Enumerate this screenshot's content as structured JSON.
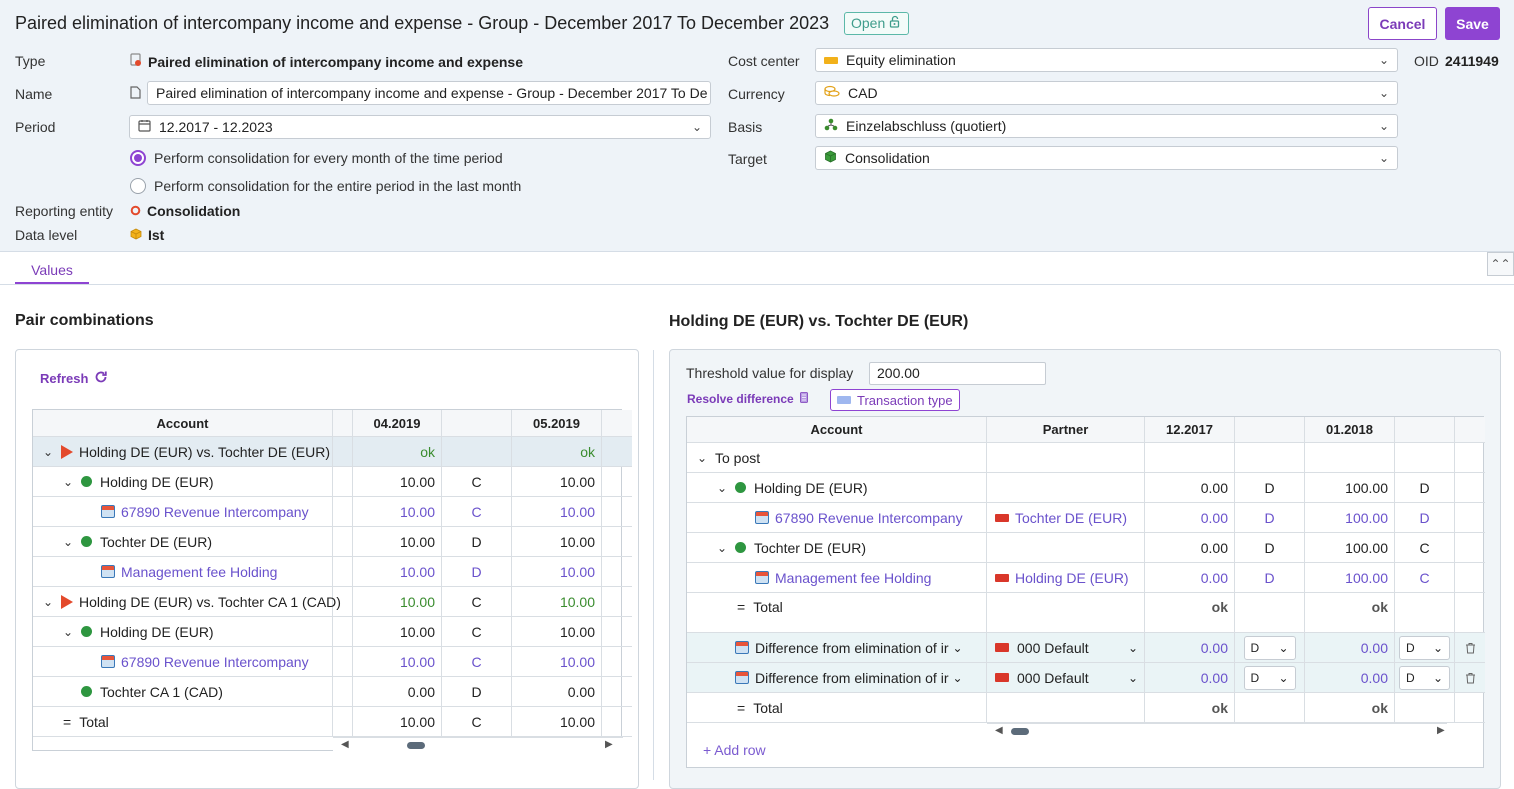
{
  "header": {
    "title": "Paired elimination of intercompany income and expense - Group - December 2017 To December 2023",
    "status": "Open",
    "cancel_label": "Cancel",
    "save_label": "Save",
    "oid_label": "OID",
    "oid_value": "2411949"
  },
  "form": {
    "type_label": "Type",
    "type_value": "Paired elimination of intercompany income and expense",
    "name_label": "Name",
    "name_value": "Paired elimination of intercompany income and expense - Group - December 2017 To De",
    "period_label": "Period",
    "period_value": "12.2017 - 12.2023",
    "radio_monthly": "Perform consolidation for every month of the time period",
    "radio_entire": "Perform consolidation for the entire period in the last month",
    "reporting_entity_label": "Reporting entity",
    "reporting_entity_value": "Consolidation",
    "data_level_label": "Data level",
    "data_level_value": "Ist",
    "cost_center_label": "Cost center",
    "cost_center_value": "Equity elimination",
    "currency_label": "Currency",
    "currency_value": "CAD",
    "basis_label": "Basis",
    "basis_value": "Einzelabschluss (quotiert)",
    "target_label": "Target",
    "target_value": "Consolidation"
  },
  "tabs": {
    "values": "Values"
  },
  "left": {
    "section_title": "Pair combinations",
    "refresh_label": "Refresh",
    "columns": [
      "Account",
      "04.2019",
      "",
      "05.2019"
    ],
    "rows": [
      {
        "label": "Holding DE (EUR) vs. Tochter DE (EUR)",
        "v1": "ok",
        "dc": "",
        "v2": "ok"
      },
      {
        "label": "Holding DE (EUR)",
        "v1": "10.00",
        "dc": "C",
        "v2": "10.00"
      },
      {
        "label": "67890 Revenue Intercompany",
        "v1": "10.00",
        "dc": "C",
        "v2": "10.00"
      },
      {
        "label": "Tochter DE (EUR)",
        "v1": "10.00",
        "dc": "D",
        "v2": "10.00"
      },
      {
        "label": "Management fee Holding",
        "v1": "10.00",
        "dc": "D",
        "v2": "10.00"
      },
      {
        "label": "Holding DE (EUR) vs. Tochter CA 1 (CAD)",
        "v1": "10.00",
        "dc": "C",
        "v2": "10.00"
      },
      {
        "label": "Holding DE (EUR)",
        "v1": "10.00",
        "dc": "C",
        "v2": "10.00"
      },
      {
        "label": "67890 Revenue Intercompany",
        "v1": "10.00",
        "dc": "C",
        "v2": "10.00"
      },
      {
        "label": "Tochter CA 1 (CAD)",
        "v1": "0.00",
        "dc": "D",
        "v2": "0.00"
      },
      {
        "label": "Total",
        "v1": "10.00",
        "dc": "C",
        "v2": "10.00"
      }
    ]
  },
  "right": {
    "section_title": "Holding DE (EUR) vs. Tochter DE (EUR)",
    "threshold_label": "Threshold value for display",
    "threshold_value": "200.00",
    "resolve_label": "Resolve difference",
    "transaction_type_label": "Transaction type",
    "columns": [
      "Account",
      "Partner",
      "12.2017",
      "",
      "01.2018",
      ""
    ],
    "rows": [
      {
        "label": "To post",
        "partner": "",
        "v1": "",
        "dc1": "",
        "v2": "",
        "dc2": ""
      },
      {
        "label": "Holding DE (EUR)",
        "partner": "",
        "v1": "0.00",
        "dc1": "D",
        "v2": "100.00",
        "dc2": "D"
      },
      {
        "label": "67890 Revenue Intercompany",
        "partner": "Tochter DE (EUR)",
        "v1": "0.00",
        "dc1": "D",
        "v2": "100.00",
        "dc2": "D"
      },
      {
        "label": "Tochter DE (EUR)",
        "partner": "",
        "v1": "0.00",
        "dc1": "D",
        "v2": "100.00",
        "dc2": "C"
      },
      {
        "label": "Management fee Holding",
        "partner": "Holding DE (EUR)",
        "v1": "0.00",
        "dc1": "D",
        "v2": "100.00",
        "dc2": "C"
      },
      {
        "label": "Total",
        "partner": "",
        "v1": "ok",
        "dc1": "",
        "v2": "ok",
        "dc2": ""
      },
      {
        "label": "Difference from elimination of ir",
        "partner": "000 Default",
        "v1": "0.00",
        "dc1": "D",
        "v2": "0.00",
        "dc2": "D"
      },
      {
        "label": "Difference from elimination of ir",
        "partner": "000 Default",
        "v1": "0.00",
        "dc1": "D",
        "v2": "0.00",
        "dc2": "D"
      },
      {
        "label": "Total",
        "partner": "",
        "v1": "ok",
        "dc1": "",
        "v2": "ok",
        "dc2": ""
      }
    ],
    "add_row_label": "+ Add row"
  },
  "colors": {
    "accent": "#8e44d2",
    "link": "#6a52cc",
    "ok_green": "#3a8c2e"
  }
}
